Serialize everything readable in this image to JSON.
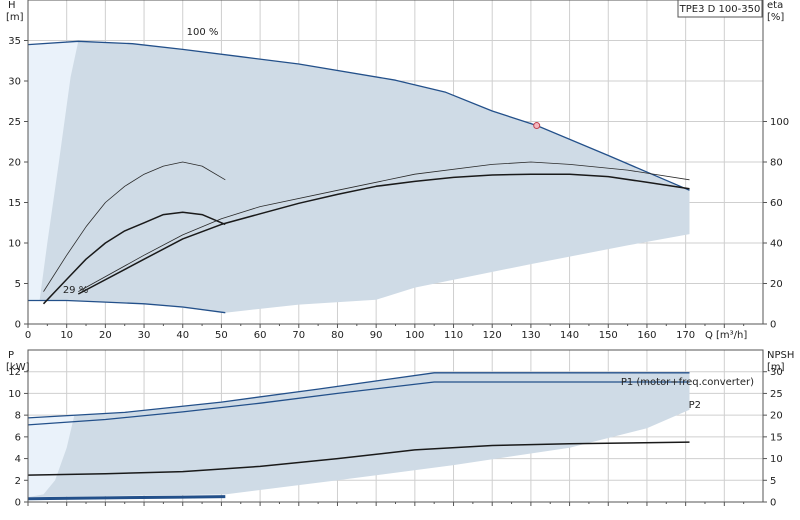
{
  "chart_data": [
    {
      "type": "line",
      "product_label": "TPE3 D 100-350",
      "y_left": {
        "symbol": "H",
        "unit": "[m]",
        "ticks": [
          0,
          5,
          10,
          15,
          20,
          25,
          30,
          35
        ],
        "ylim": [
          0,
          40
        ]
      },
      "y_right": {
        "symbol": "eta",
        "unit": "[%]",
        "ticks": [
          0,
          20,
          40,
          60,
          80,
          100
        ],
        "ylim": [
          0,
          160
        ]
      },
      "x": {
        "label": "Q [m³/h]",
        "ticks": [
          0,
          10,
          20,
          30,
          40,
          50,
          60,
          70,
          80,
          90,
          100,
          110,
          120,
          130,
          140,
          150,
          160,
          170
        ],
        "xlim": [
          0,
          190
        ]
      },
      "grid": true,
      "annotations": [
        {
          "text": "100 %",
          "x": 41,
          "y": 35.7
        },
        {
          "text": "29 %",
          "x": 9,
          "y": 3.8
        }
      ],
      "duty_point": {
        "x": 131.5,
        "y": 24.5
      },
      "area_operating_range": [
        [
          0,
          34.5
        ],
        [
          13,
          34.9
        ],
        [
          27,
          34.6
        ],
        [
          40,
          33.9
        ],
        [
          55,
          33.0
        ],
        [
          70,
          32.1
        ],
        [
          95,
          30.1
        ],
        [
          108,
          28.6
        ],
        [
          120,
          26.3
        ],
        [
          131.5,
          24.5
        ],
        [
          150,
          20.8
        ],
        [
          170,
          16.8
        ],
        [
          171,
          16.5
        ],
        [
          171,
          11.1
        ],
        [
          155,
          9.7
        ],
        [
          130,
          7.4
        ],
        [
          100,
          4.5
        ],
        [
          90,
          3.0
        ],
        [
          70,
          2.4
        ],
        [
          51,
          1.4
        ],
        [
          30,
          2.5
        ],
        [
          10,
          2.9
        ],
        [
          0,
          2.9
        ]
      ],
      "area_light_left": [
        [
          0,
          34.5
        ],
        [
          13,
          34.9
        ],
        [
          11,
          30.5
        ],
        [
          8,
          20.0
        ],
        [
          5,
          10.0
        ],
        [
          3,
          2.9
        ],
        [
          0,
          2.9
        ]
      ],
      "series": [
        {
          "name": "100 %",
          "axis": "left",
          "points": [
            [
              0,
              34.5
            ],
            [
              13,
              34.9
            ],
            [
              27,
              34.6
            ],
            [
              40,
              33.9
            ],
            [
              55,
              33.0
            ],
            [
              70,
              32.1
            ],
            [
              95,
              30.1
            ],
            [
              108,
              28.6
            ],
            [
              120,
              26.3
            ],
            [
              131.5,
              24.5
            ],
            [
              150,
              20.8
            ],
            [
              171,
              16.5
            ]
          ]
        },
        {
          "name": "29 %",
          "axis": "left",
          "points": [
            [
              0,
              2.9
            ],
            [
              10,
              2.9
            ],
            [
              20,
              2.7
            ],
            [
              30,
              2.5
            ],
            [
              40,
              2.1
            ],
            [
              51,
              1.4
            ]
          ]
        },
        {
          "axis": "left",
          "thin": true,
          "points": [
            [
              4,
              4.0
            ],
            [
              10,
              8.5
            ],
            [
              15,
              12.0
            ],
            [
              20,
              15.0
            ],
            [
              25,
              17.0
            ],
            [
              30,
              18.5
            ],
            [
              35,
              19.5
            ],
            [
              40,
              20.0
            ],
            [
              45,
              19.5
            ],
            [
              51,
              17.8
            ]
          ]
        },
        {
          "axis": "left",
          "points": [
            [
              4,
              2.5
            ],
            [
              10,
              5.5
            ],
            [
              15,
              8.0
            ],
            [
              20,
              10.0
            ],
            [
              25,
              11.5
            ],
            [
              30,
              12.5
            ],
            [
              35,
              13.5
            ],
            [
              40,
              13.8
            ],
            [
              45,
              13.5
            ],
            [
              51,
              12.3
            ]
          ]
        },
        {
          "axis": "left",
          "thin": true,
          "points": [
            [
              13,
              4.0
            ],
            [
              30,
              8.5
            ],
            [
              40,
              11.0
            ],
            [
              50,
              13.0
            ],
            [
              60,
              14.5
            ],
            [
              80,
              16.5
            ],
            [
              100,
              18.5
            ],
            [
              120,
              19.7
            ],
            [
              130,
              20.0
            ],
            [
              140,
              19.7
            ],
            [
              155,
              19.0
            ],
            [
              171,
              17.8
            ]
          ]
        },
        {
          "axis": "left",
          "points": [
            [
              13,
              3.7
            ],
            [
              30,
              8.0
            ],
            [
              40,
              10.5
            ],
            [
              50,
              12.3
            ],
            [
              60,
              13.6
            ],
            [
              70,
              14.9
            ],
            [
              80,
              16.0
            ],
            [
              90,
              17.0
            ],
            [
              100,
              17.6
            ],
            [
              110,
              18.1
            ],
            [
              120,
              18.4
            ],
            [
              130,
              18.5
            ],
            [
              140,
              18.5
            ],
            [
              150,
              18.2
            ],
            [
              160,
              17.5
            ],
            [
              171,
              16.7
            ]
          ]
        }
      ]
    },
    {
      "type": "line",
      "y_left": {
        "symbol": "P",
        "unit": "[kW]",
        "ticks": [
          0,
          2,
          4,
          6,
          8,
          10,
          12
        ],
        "ylim": [
          0,
          14
        ]
      },
      "y_right": {
        "symbol": "NPSH",
        "unit": "[m]",
        "ticks": [
          0,
          5,
          10,
          15,
          20,
          25,
          30
        ],
        "ylim": [
          0,
          35
        ]
      },
      "x": {
        "xlim": [
          0,
          190
        ]
      },
      "grid": true,
      "area_operating_range": [
        [
          0,
          7.75
        ],
        [
          25,
          8.25
        ],
        [
          50,
          9.2
        ],
        [
          75,
          10.4
        ],
        [
          105,
          11.9
        ],
        [
          171,
          11.9
        ],
        [
          171,
          8.5
        ],
        [
          160,
          6.8
        ],
        [
          140,
          5.0
        ],
        [
          110,
          3.4
        ],
        [
          80,
          2.0
        ],
        [
          51,
          0.7
        ],
        [
          0,
          0.45
        ]
      ],
      "area_light_left": [
        [
          0,
          7.75
        ],
        [
          12,
          8.0
        ],
        [
          10,
          5.0
        ],
        [
          7,
          2.0
        ],
        [
          4,
          0.7
        ],
        [
          0,
          0.45
        ]
      ],
      "series": [
        {
          "name": "P1 (motor+freq.converter)",
          "axis": "left",
          "points": [
            [
              0,
              7.75
            ],
            [
              25,
              8.25
            ],
            [
              50,
              9.2
            ],
            [
              75,
              10.4
            ],
            [
              105,
              11.9
            ],
            [
              171,
              11.9
            ]
          ]
        },
        {
          "name": "P2",
          "axis": "left",
          "points": [
            [
              0,
              7.1
            ],
            [
              20,
              7.6
            ],
            [
              40,
              8.3
            ],
            [
              60,
              9.1
            ],
            [
              80,
              10.0
            ],
            [
              105,
              11.05
            ],
            [
              171,
              11.05
            ]
          ]
        },
        {
          "axis": "right",
          "points": [
            [
              0,
              6.2
            ],
            [
              20,
              6.5
            ],
            [
              40,
              7.0
            ],
            [
              60,
              8.2
            ],
            [
              80,
              10.0
            ],
            [
              100,
              12.0
            ],
            [
              120,
              13.0
            ],
            [
              140,
              13.4
            ],
            [
              171,
              13.8
            ]
          ]
        },
        {
          "axis": "left",
          "thick": true,
          "points": [
            [
              0,
              0.3
            ],
            [
              20,
              0.38
            ],
            [
              40,
              0.45
            ],
            [
              51,
              0.5
            ]
          ]
        }
      ]
    }
  ]
}
